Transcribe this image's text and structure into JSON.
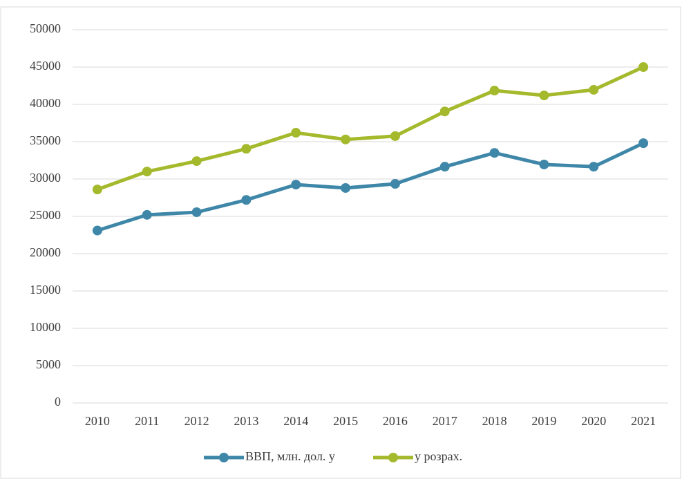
{
  "chart_data": {
    "type": "line",
    "categories": [
      "2010",
      "2011",
      "2012",
      "2013",
      "2014",
      "2015",
      "2016",
      "2017",
      "2018",
      "2019",
      "2020",
      "2021"
    ],
    "series": [
      {
        "name": "ВВП, млн. дол. у",
        "color": "#3f87a8",
        "values": [
          23100,
          25200,
          25550,
          27200,
          29250,
          28800,
          29350,
          31650,
          33500,
          31950,
          31650,
          34800
        ]
      },
      {
        "name": "у розрах.",
        "color": "#a4b92b",
        "values": [
          28600,
          31000,
          32400,
          34050,
          36200,
          35300,
          35750,
          39050,
          41850,
          41200,
          41950,
          45000
        ]
      }
    ],
    "ylim": [
      0,
      50000
    ],
    "yticks": [
      0,
      5000,
      10000,
      15000,
      20000,
      25000,
      30000,
      35000,
      40000,
      45000,
      50000
    ],
    "grid": true,
    "legend": "bottom"
  }
}
